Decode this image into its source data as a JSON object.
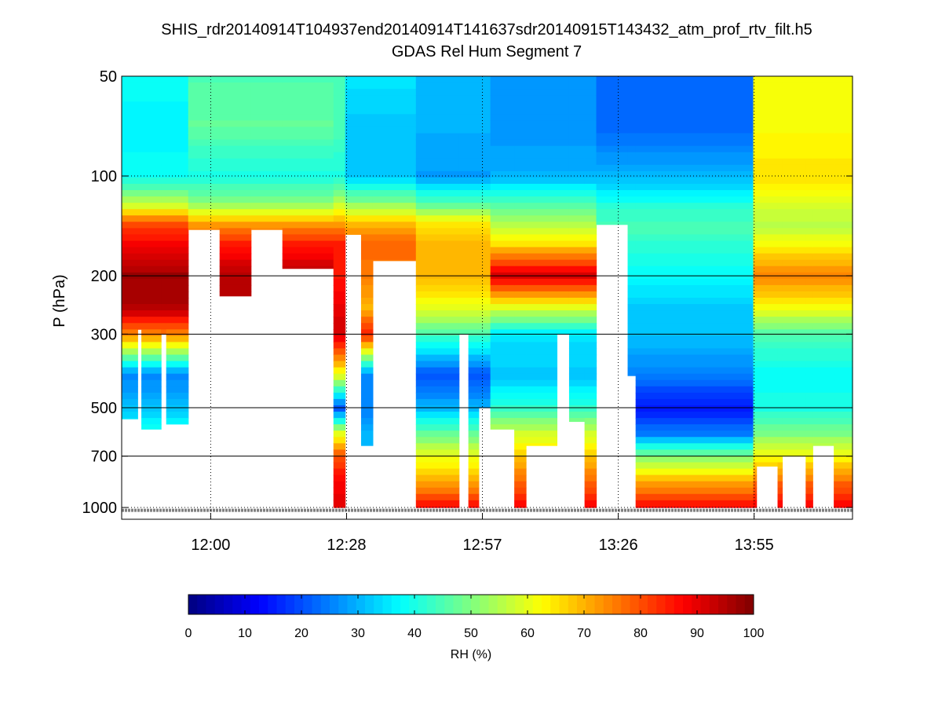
{
  "chart_data": {
    "type": "heatmap",
    "title": "SHIS_rdr20140914T104937end20140914T141637sdr20140915T143432_atm_prof_rtv_filt.h5",
    "subtitle": "GDAS Rel Hum Segment 7",
    "ylabel": "P (hPa)",
    "y_scale": "log",
    "y_reversed": true,
    "ylim": [
      50,
      1084
    ],
    "y_ticks": [
      50,
      100,
      200,
      300,
      500,
      700,
      1000
    ],
    "x_units": "minutes after 11:41",
    "xlim": [
      0,
      156
    ],
    "x_ticks": [
      {
        "t": 19,
        "label": "12:00"
      },
      {
        "t": 48,
        "label": "12:28"
      },
      {
        "t": 77,
        "label": "12:57"
      },
      {
        "t": 106,
        "label": "13:26"
      },
      {
        "t": 135,
        "label": "13:55"
      }
    ],
    "grid": "dotted vertical at x ticks; horizontal at y ticks",
    "colorbar": {
      "label": "RH (%)",
      "range": [
        0,
        100
      ],
      "ticks": [
        0,
        10,
        20,
        30,
        40,
        50,
        60,
        70,
        80,
        90,
        100
      ],
      "colormap": "jet",
      "placement": "bottom"
    },
    "levels_hPa": [
      50,
      70,
      100,
      120,
      140,
      160,
      200,
      250,
      300,
      400,
      500,
      600,
      700,
      850,
      1000
    ],
    "profiles": {
      "A": [
        38,
        37,
        38,
        55,
        80,
        88,
        97,
        95,
        75,
        25,
        32,
        40,
        40,
        40,
        40
      ],
      "B": [
        45,
        47,
        40,
        50,
        72,
        85,
        95,
        95,
        95,
        95,
        95,
        95,
        95,
        95,
        95
      ],
      "C": [
        45,
        45,
        40,
        55,
        72,
        85,
        85,
        90,
        92,
        60,
        20,
        60,
        80,
        88,
        90
      ],
      "D": [
        35,
        32,
        32,
        50,
        70,
        78,
        75,
        70,
        85,
        25,
        25,
        30,
        30,
        30,
        30
      ],
      "E": [
        30,
        30,
        28,
        45,
        65,
        70,
        70,
        60,
        45,
        20,
        30,
        48,
        60,
        72,
        88
      ],
      "F": [
        28,
        27,
        30,
        45,
        55,
        65,
        92,
        60,
        35,
        32,
        42,
        58,
        68,
        78,
        88
      ],
      "G": [
        22,
        22,
        30,
        40,
        45,
        42,
        38,
        32,
        32,
        25,
        14,
        25,
        50,
        72,
        88
      ],
      "H": [
        62,
        62,
        65,
        60,
        55,
        62,
        75,
        62,
        45,
        38,
        40,
        50,
        62,
        78,
        88
      ]
    },
    "columns": [
      [
        0,
        3.4,
        "A",
        540
      ],
      [
        3.4,
        4.2,
        "A",
        290
      ],
      [
        4.2,
        8.4,
        "A",
        580
      ],
      [
        8.4,
        9.5,
        "A",
        300
      ],
      [
        9.5,
        14.2,
        "A",
        560
      ],
      [
        14.2,
        20.9,
        "B",
        145
      ],
      [
        20.9,
        27.6,
        "B",
        230
      ],
      [
        27.6,
        34.3,
        "B",
        145
      ],
      [
        34.3,
        45.2,
        "B",
        190
      ],
      [
        45.2,
        47.7,
        "C",
        1000
      ],
      [
        47.7,
        51.1,
        "D",
        150
      ],
      [
        51.1,
        53.6,
        "D",
        650
      ],
      [
        53.6,
        62.8,
        "D",
        180
      ],
      [
        62.8,
        72,
        "E",
        1000
      ],
      [
        72,
        74,
        "E",
        300
      ],
      [
        74,
        76.2,
        "E",
        1000
      ],
      [
        76.2,
        78.7,
        "E",
        500
      ],
      [
        78.7,
        83.8,
        "F",
        580
      ],
      [
        83.8,
        86.3,
        "F",
        1000
      ],
      [
        86.3,
        92.9,
        "F",
        650
      ],
      [
        92.9,
        95.5,
        "F",
        300
      ],
      [
        95.5,
        98.8,
        "F",
        550
      ],
      [
        98.8,
        101.3,
        "F",
        1000
      ],
      [
        101.3,
        108,
        "G",
        140
      ],
      [
        108,
        109.7,
        "G",
        400
      ],
      [
        109.7,
        134.8,
        "G",
        1000
      ],
      [
        134.8,
        135.5,
        "H",
        1000
      ],
      [
        135.5,
        140,
        "H",
        750
      ],
      [
        140,
        141,
        "H",
        1000
      ],
      [
        141,
        146,
        "H",
        700
      ],
      [
        146,
        147.5,
        "H",
        1000
      ],
      [
        147.5,
        152,
        "H",
        650
      ],
      [
        152,
        156,
        "H",
        1000
      ]
    ],
    "surface_pressure_hPa": 1020,
    "surface_color": "#808080"
  }
}
